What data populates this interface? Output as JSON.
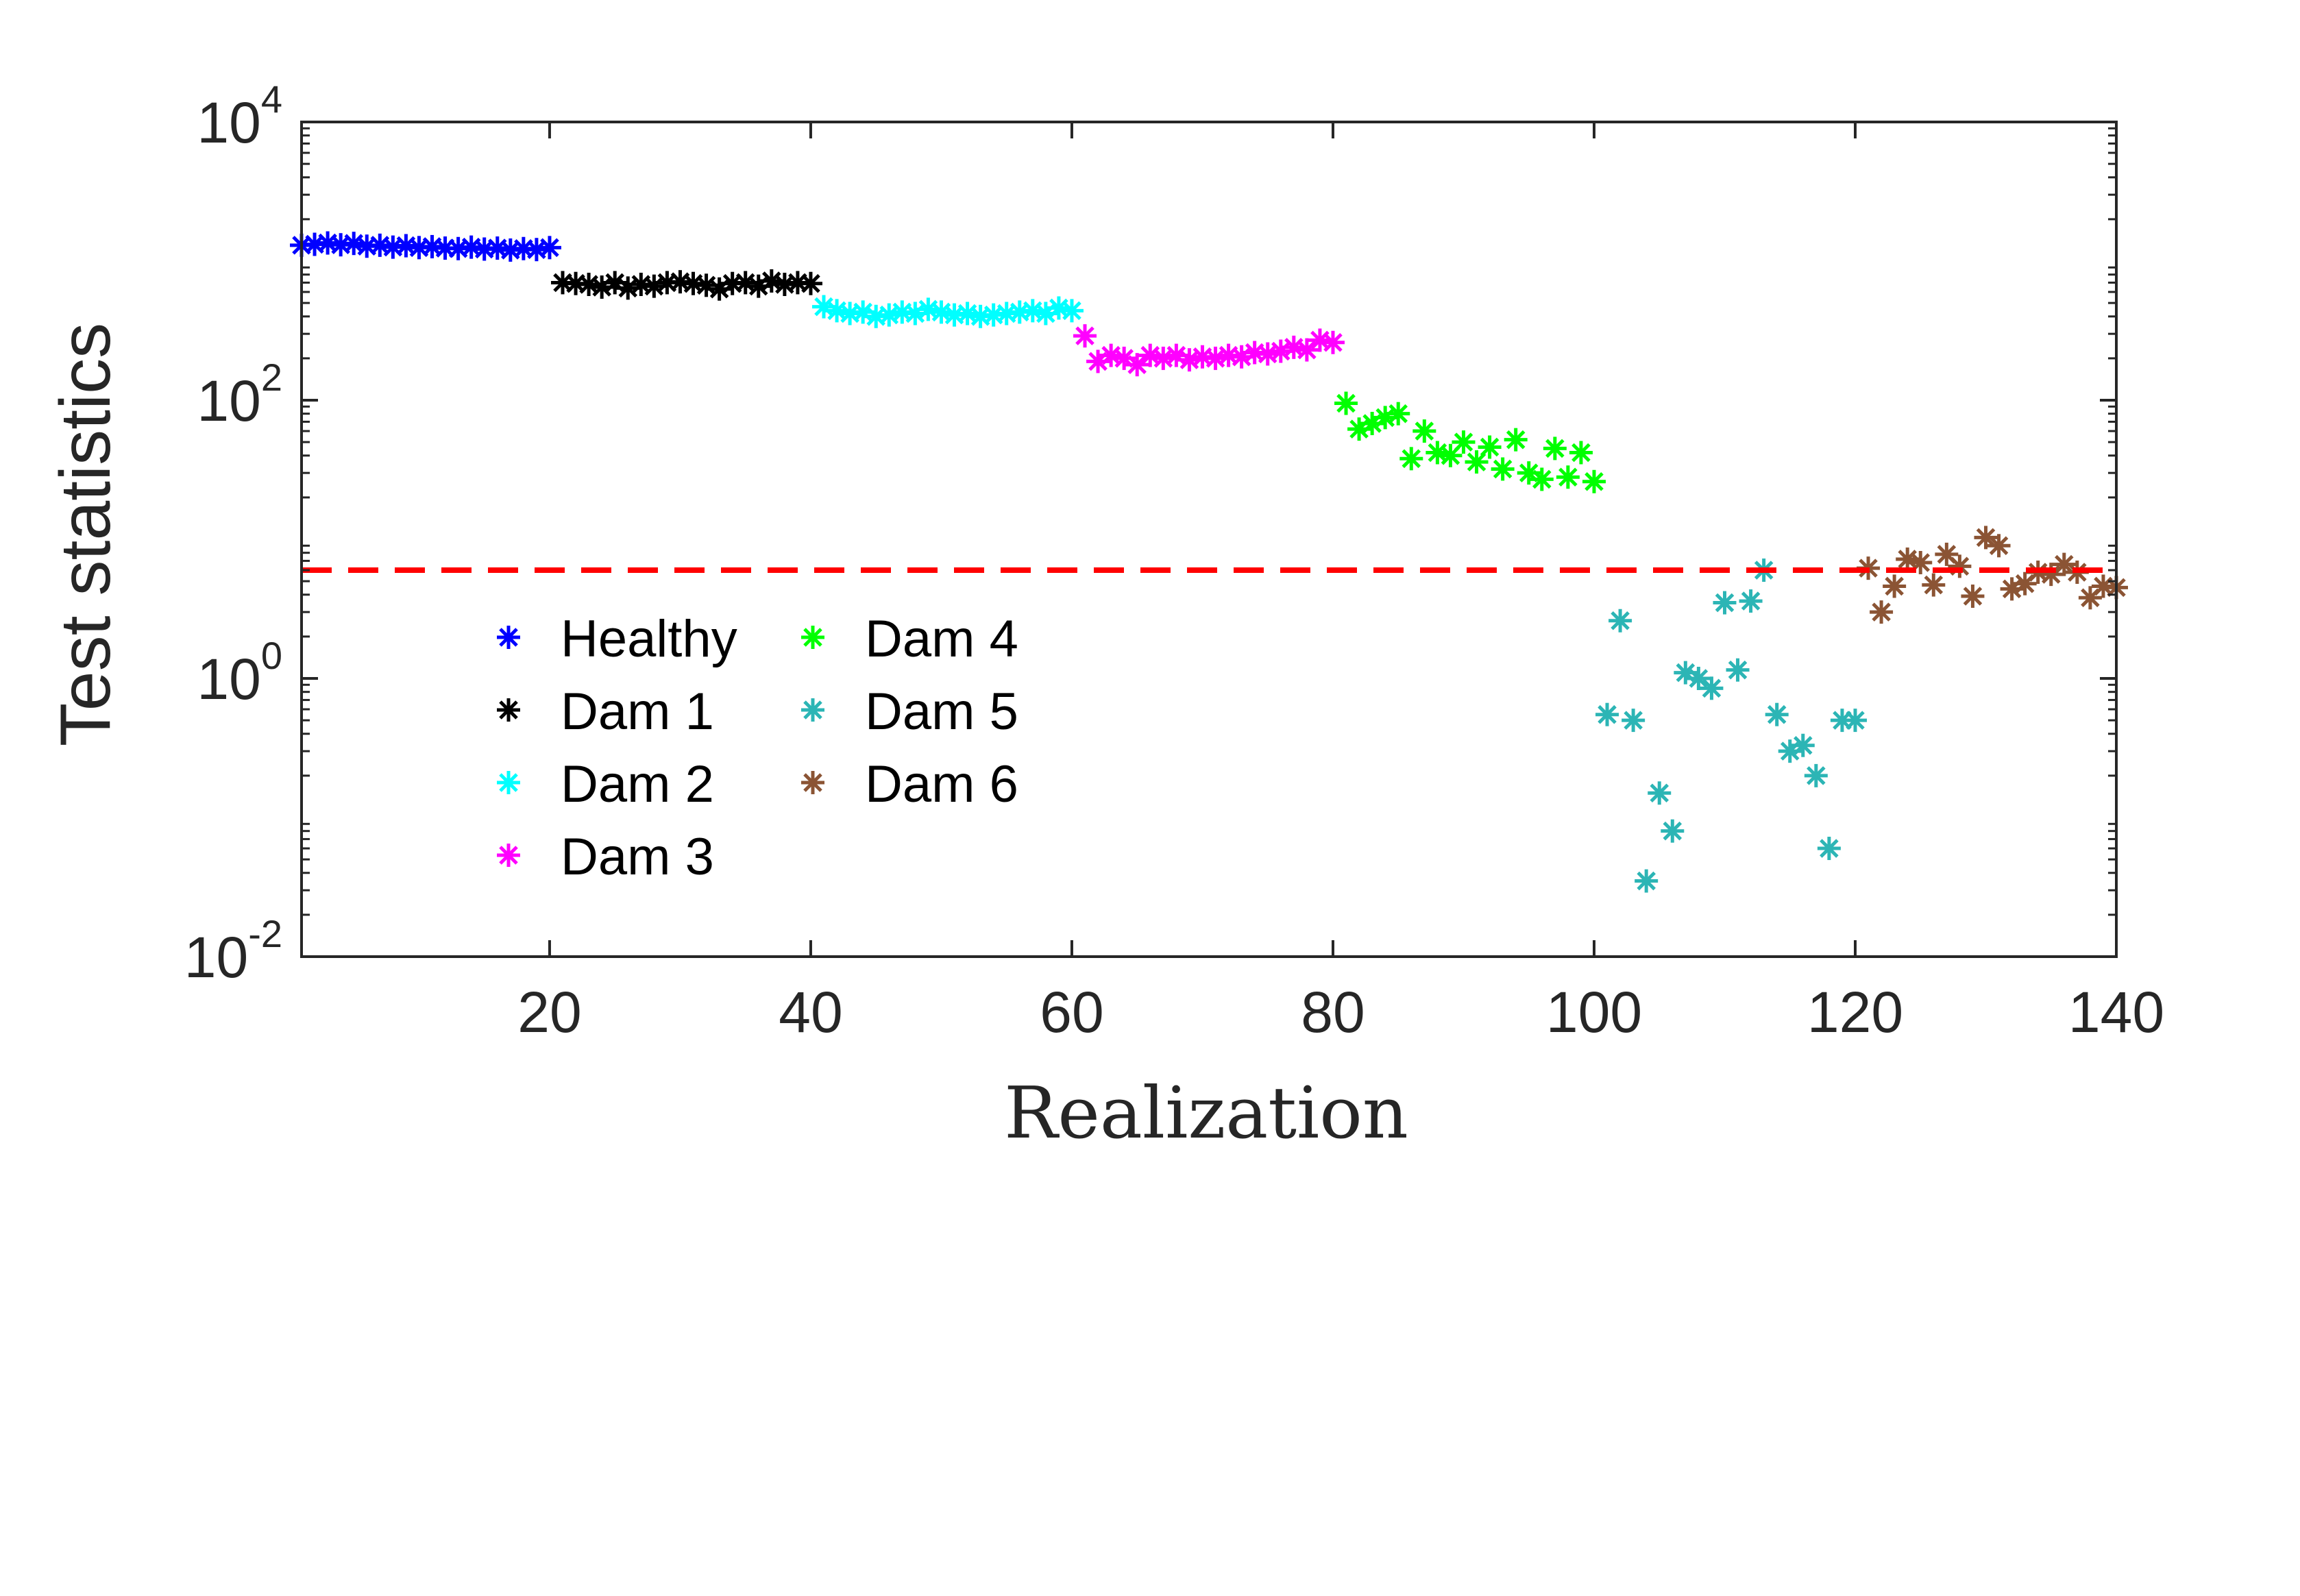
{
  "chart_data": {
    "type": "scatter",
    "title": "",
    "xlabel": "Realization",
    "ylabel": "Test statistics",
    "xlim": [
      1,
      140
    ],
    "ylim": [
      0.01,
      10000
    ],
    "yscale": "log",
    "xticks": [
      20,
      40,
      60,
      80,
      100,
      120,
      140
    ],
    "yticks": [
      {
        "value": 0.01,
        "base": "10",
        "exp": "-2"
      },
      {
        "value": 1,
        "base": "10",
        "exp": "0"
      },
      {
        "value": 100,
        "base": "10",
        "exp": "2"
      },
      {
        "value": 10000,
        "base": "10",
        "exp": "4"
      }
    ],
    "grid": false,
    "legend_position": "lower-left",
    "marker": "asterisk",
    "threshold": {
      "value": 6.0,
      "color": "#ff0000",
      "style": "dashed"
    },
    "series": [
      {
        "name": "Healthy",
        "color": "#0000ff",
        "x": [
          1,
          2,
          3,
          4,
          5,
          6,
          7,
          8,
          9,
          10,
          11,
          12,
          13,
          14,
          15,
          16,
          17,
          18,
          19,
          20
        ],
        "y": [
          1300,
          1320,
          1350,
          1310,
          1340,
          1280,
          1300,
          1260,
          1290,
          1250,
          1270,
          1240,
          1230,
          1260,
          1220,
          1240,
          1200,
          1230,
          1210,
          1250
        ]
      },
      {
        "name": "Dam 1",
        "color": "#000000",
        "x": [
          21,
          22,
          23,
          24,
          25,
          26,
          27,
          28,
          29,
          30,
          31,
          32,
          33,
          34,
          35,
          36,
          37,
          38,
          39,
          40
        ],
        "y": [
          700,
          690,
          680,
          650,
          700,
          640,
          680,
          660,
          700,
          710,
          690,
          670,
          630,
          690,
          700,
          660,
          720,
          680,
          700,
          690
        ]
      },
      {
        "name": "Dam 2",
        "color": "#00ffff",
        "x": [
          41,
          42,
          43,
          44,
          45,
          46,
          47,
          48,
          49,
          50,
          51,
          52,
          53,
          54,
          55,
          56,
          57,
          58,
          59,
          60
        ],
        "y": [
          470,
          440,
          420,
          430,
          400,
          410,
          430,
          420,
          450,
          430,
          410,
          420,
          400,
          410,
          420,
          430,
          440,
          420,
          460,
          440
        ]
      },
      {
        "name": "Dam 3",
        "color": "#ff00ff",
        "x": [
          61,
          62,
          63,
          64,
          65,
          66,
          67,
          68,
          69,
          70,
          71,
          72,
          73,
          74,
          75,
          76,
          77,
          78,
          79,
          80
        ],
        "y": [
          290,
          190,
          210,
          200,
          180,
          210,
          200,
          210,
          195,
          205,
          200,
          210,
          205,
          220,
          215,
          225,
          240,
          230,
          270,
          260
        ]
      },
      {
        "name": "Dam 4",
        "color": "#00ff00",
        "x": [
          81,
          82,
          83,
          84,
          85,
          86,
          87,
          88,
          89,
          90,
          91,
          92,
          93,
          94,
          95,
          96,
          97,
          98,
          99,
          100
        ],
        "y": [
          95,
          62,
          68,
          75,
          80,
          38,
          60,
          42,
          40,
          50,
          36,
          46,
          32,
          52,
          30,
          27,
          45,
          28,
          42,
          26
        ]
      },
      {
        "name": "Dam 5",
        "color": "#2cb5b5",
        "x": [
          101,
          102,
          103,
          104,
          105,
          106,
          107,
          108,
          109,
          110,
          111,
          112,
          113,
          114,
          115,
          116,
          117,
          118,
          119,
          120
        ],
        "y": [
          0.55,
          2.6,
          0.5,
          0.035,
          0.15,
          0.08,
          1.1,
          1.0,
          0.85,
          3.5,
          1.15,
          3.6,
          6.0,
          0.55,
          0.3,
          0.33,
          0.2,
          0.06,
          0.5,
          0.5
        ]
      },
      {
        "name": "Dam 6",
        "color": "#8b5434",
        "x": [
          121,
          122,
          123,
          124,
          125,
          126,
          127,
          128,
          129,
          130,
          131,
          132,
          133,
          134,
          135,
          136,
          137,
          138,
          139,
          140
        ],
        "y": [
          6.2,
          3.0,
          4.6,
          7.2,
          6.8,
          4.7,
          7.8,
          6.4,
          3.9,
          10.3,
          9.0,
          4.4,
          4.8,
          5.8,
          5.6,
          6.6,
          5.8,
          3.8,
          4.6,
          4.5
        ]
      }
    ]
  }
}
